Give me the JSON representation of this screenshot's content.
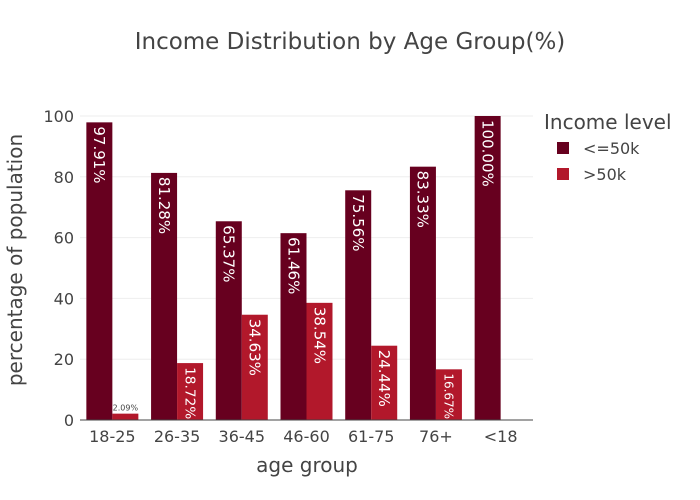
{
  "chart_data": {
    "type": "bar",
    "title": "Income Distribution by Age Group(%)",
    "xlabel": "age group",
    "ylabel": "percentage of population",
    "categories": [
      "18-25",
      "26-35",
      "36-45",
      "46-60",
      "61-75",
      "76+",
      "<18"
    ],
    "ylim": [
      0,
      100
    ],
    "yticks": [
      0,
      20,
      40,
      60,
      80,
      100
    ],
    "grid": true,
    "legend": {
      "title": "Income level",
      "placement": "right"
    },
    "series": [
      {
        "name": "<=50k",
        "color": "#67001f",
        "values": [
          97.91,
          81.28,
          65.37,
          61.46,
          75.56,
          83.33,
          100.0
        ],
        "labels": [
          "97.91%",
          "81.28%",
          "65.37%",
          "61.46%",
          "75.56%",
          "83.33%",
          "100.00%"
        ]
      },
      {
        "name": ">50k",
        "color": "#b2182b",
        "values": [
          2.09,
          18.72,
          34.63,
          38.54,
          24.44,
          16.67,
          null
        ],
        "labels": [
          "2.09%",
          "18.72%",
          "34.63%",
          "38.54%",
          "24.44%",
          "16.67%",
          null
        ]
      }
    ]
  }
}
